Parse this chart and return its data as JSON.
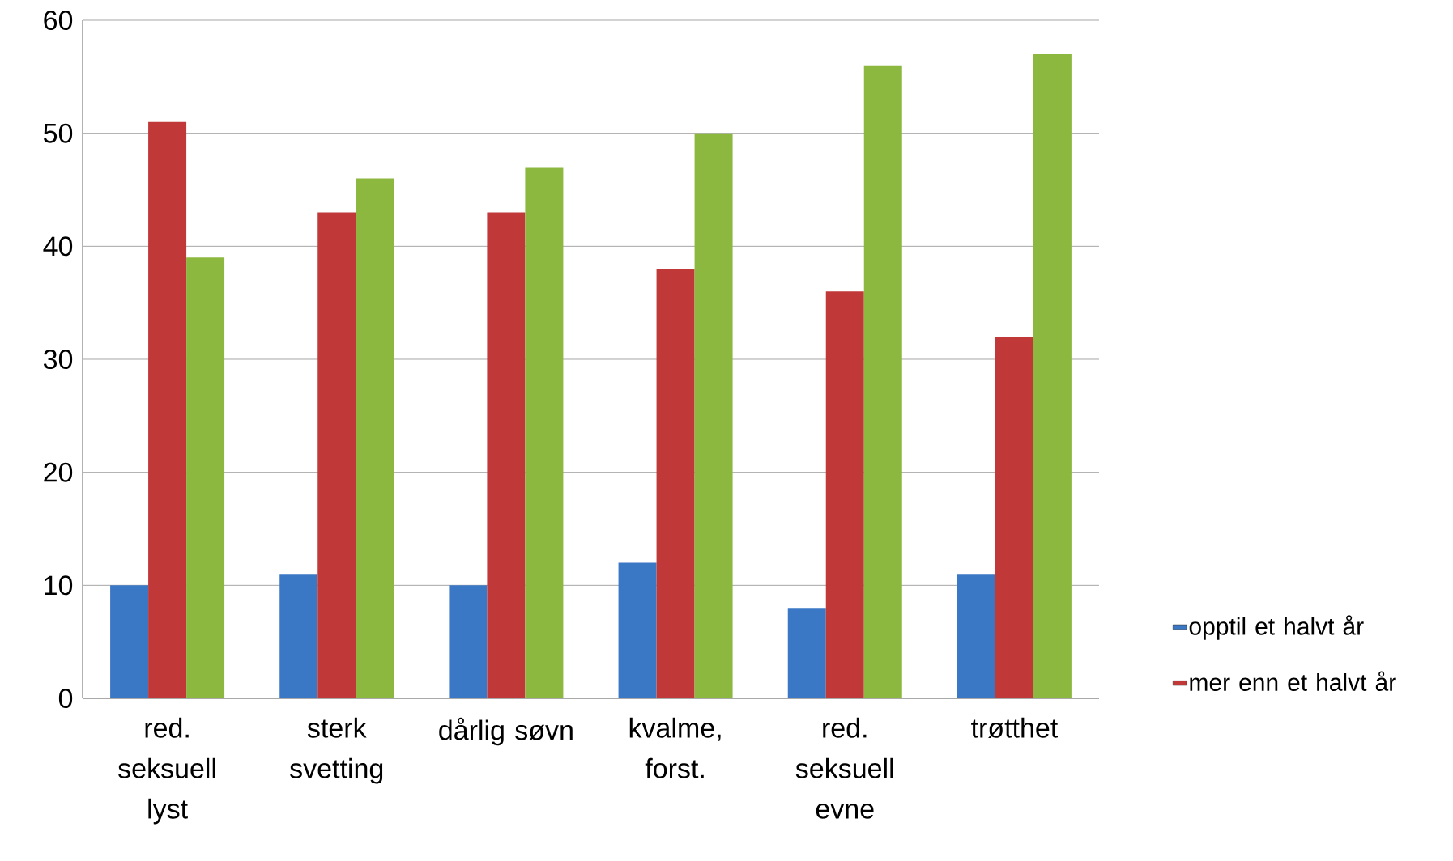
{
  "chart_data": {
    "type": "bar",
    "categories": [
      "red. seksuell lyst",
      "sterk svetting",
      "dårlig søvn",
      "kvalme, forst.",
      "red. seksuell evne",
      "trøtthet"
    ],
    "series": [
      {
        "name": "opptil et halvt år",
        "color": "#3a77c4",
        "values": [
          10,
          11,
          10,
          12,
          8,
          11
        ]
      },
      {
        "name": "mer enn et halvt år",
        "color": "#c03838",
        "values": [
          51,
          43,
          43,
          38,
          36,
          32
        ]
      },
      {
        "color": "#8cb840",
        "values": [
          39,
          46,
          47,
          50,
          56,
          57
        ]
      }
    ],
    "ylim": [
      0,
      60
    ],
    "yticks": [
      0,
      10,
      20,
      30,
      40,
      50,
      60
    ],
    "grid": "y",
    "legend": "right"
  }
}
